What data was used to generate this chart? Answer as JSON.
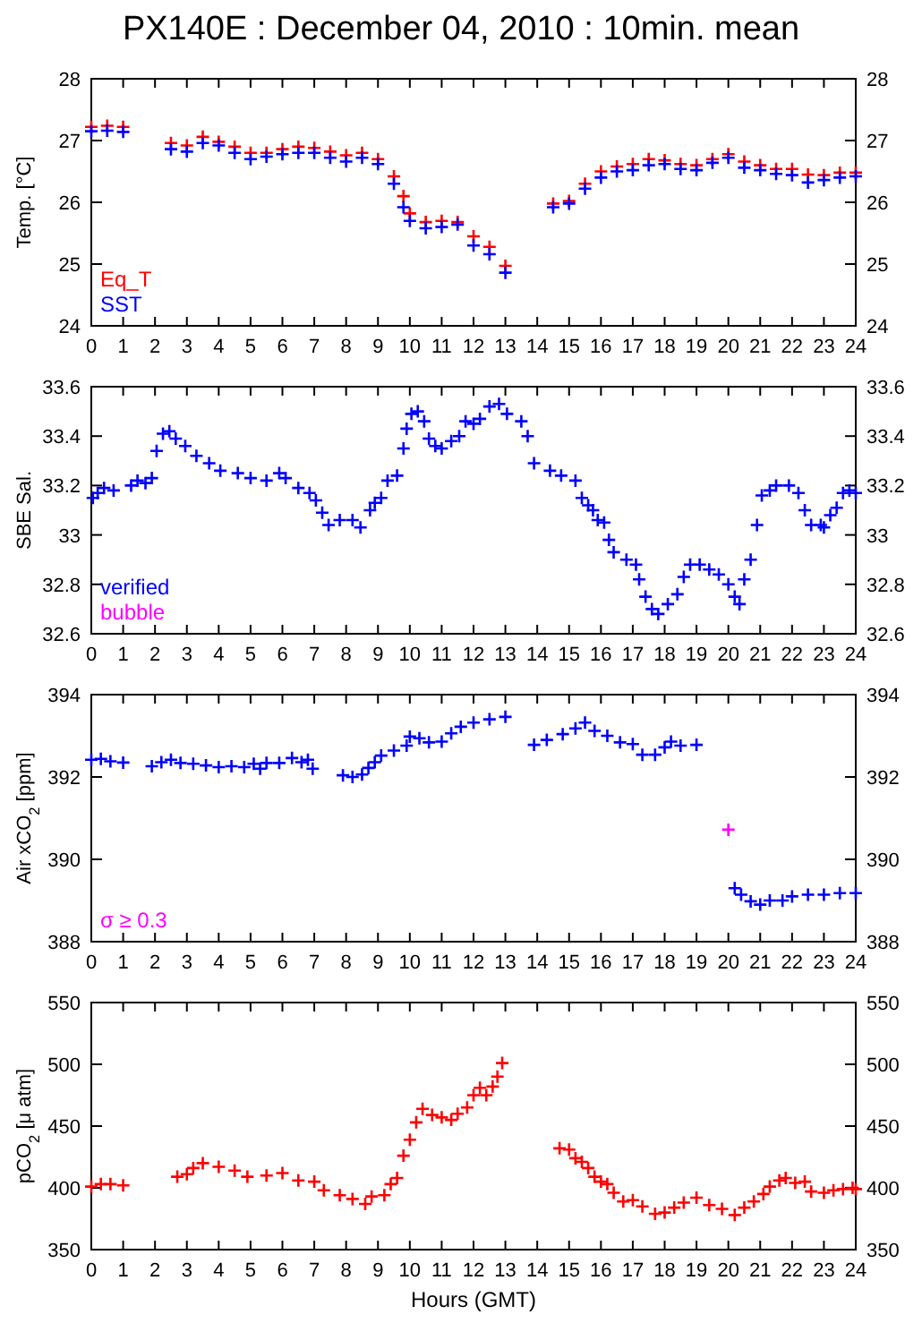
{
  "chart_data": [
    {
      "type": "scatter",
      "title": "PX140E : December 04, 2010 : 10min. mean",
      "ylabel": "Temp. [°C]",
      "marker": "cross",
      "legend": "bottom left",
      "xlim": [
        0,
        24
      ],
      "xticks": [
        0,
        1,
        2,
        3,
        4,
        5,
        6,
        7,
        8,
        9,
        10,
        11,
        12,
        13,
        14,
        15,
        16,
        17,
        18,
        19,
        20,
        21,
        22,
        23,
        24
      ],
      "ylim": [
        24,
        28
      ],
      "yticks": [
        24,
        25,
        26,
        27,
        28
      ],
      "y2lim": [
        24,
        28
      ],
      "y2ticks": [
        24,
        25,
        26,
        27,
        28
      ],
      "series": [
        {
          "name": "Eq_T",
          "color": "#ff0000",
          "x": [
            0,
            0.5,
            1,
            2.5,
            3,
            3.5,
            4,
            4.5,
            5,
            5.5,
            6,
            6.5,
            7,
            7.5,
            8,
            8.5,
            9,
            9.5,
            9.8,
            10,
            10.5,
            11,
            11.5,
            12,
            12.5,
            13,
            14.5,
            15,
            15.5,
            16,
            16.5,
            17,
            17.5,
            18,
            18.5,
            19,
            19.5,
            20,
            20.5,
            21,
            21.5,
            22,
            22.5,
            23,
            23.5,
            24
          ],
          "values": [
            27.22,
            27.24,
            27.22,
            26.96,
            26.92,
            27.06,
            26.98,
            26.9,
            26.8,
            26.8,
            26.86,
            26.9,
            26.88,
            26.82,
            26.76,
            26.8,
            26.7,
            26.42,
            26.1,
            25.82,
            25.68,
            25.7,
            25.68,
            25.45,
            25.28,
            24.97,
            25.98,
            26.02,
            26.3,
            26.5,
            26.58,
            26.62,
            26.7,
            26.68,
            26.62,
            26.6,
            26.7,
            26.78,
            26.66,
            26.6,
            26.54,
            26.54,
            26.45,
            26.44,
            26.48,
            26.48
          ]
        },
        {
          "name": "SST",
          "color": "#0000ff",
          "x": [
            0,
            0.5,
            1,
            2.5,
            3,
            3.5,
            4,
            4.5,
            5,
            5.5,
            6,
            6.5,
            7,
            7.5,
            8,
            8.5,
            9,
            9.5,
            9.8,
            10,
            10.5,
            11,
            11.5,
            12,
            12.5,
            13,
            14.5,
            15,
            15.5,
            16,
            16.5,
            17,
            17.5,
            18,
            18.5,
            19,
            19.5,
            20,
            20.5,
            21,
            21.5,
            22,
            22.5,
            23,
            23.5,
            24
          ],
          "values": [
            27.15,
            27.16,
            27.14,
            26.86,
            26.82,
            26.96,
            26.92,
            26.8,
            26.7,
            26.74,
            26.78,
            26.8,
            26.8,
            26.72,
            26.66,
            26.72,
            26.62,
            26.3,
            25.92,
            25.7,
            25.58,
            25.6,
            25.64,
            25.3,
            25.16,
            24.86,
            25.92,
            25.98,
            26.22,
            26.4,
            26.5,
            26.52,
            26.6,
            26.62,
            26.54,
            26.52,
            26.64,
            26.72,
            26.56,
            26.52,
            26.46,
            26.44,
            26.32,
            26.36,
            26.4,
            26.42
          ]
        }
      ]
    },
    {
      "type": "scatter",
      "ylabel": "SBE Sal.",
      "marker": "cross",
      "legend": "bottom left",
      "xlim": [
        0,
        24
      ],
      "xticks": [
        0,
        1,
        2,
        3,
        4,
        5,
        6,
        7,
        8,
        9,
        10,
        11,
        12,
        13,
        14,
        15,
        16,
        17,
        18,
        19,
        20,
        21,
        22,
        23,
        24
      ],
      "ylim": [
        32.6,
        33.6
      ],
      "yticks": [
        32.6,
        32.8,
        33,
        33.2,
        33.4,
        33.6
      ],
      "y2lim": [
        32.6,
        33.6
      ],
      "y2ticks": [
        32.6,
        32.8,
        33,
        33.2,
        33.4,
        33.6
      ],
      "series": [
        {
          "name": "verified",
          "color": "#0000ff",
          "x": [
            0.05,
            0.2,
            0.4,
            0.7,
            1.25,
            1.45,
            1.7,
            1.9,
            2.05,
            2.25,
            2.45,
            2.65,
            2.95,
            3.3,
            3.7,
            4.05,
            4.6,
            5.0,
            5.5,
            5.9,
            6.1,
            6.5,
            6.85,
            7.05,
            7.25,
            7.45,
            7.8,
            8.2,
            8.45,
            8.75,
            8.9,
            9.1,
            9.3,
            9.6,
            9.8,
            9.9,
            10.05,
            10.25,
            10.45,
            10.6,
            10.8,
            11.0,
            11.3,
            11.55,
            11.75,
            12.0,
            12.2,
            12.5,
            12.8,
            13.05,
            13.5,
            13.7,
            13.9,
            14.4,
            14.75,
            15.2,
            15.4,
            15.6,
            15.75,
            15.9,
            16.1,
            16.25,
            16.4,
            16.8,
            17.1,
            17.2,
            17.4,
            17.6,
            17.8,
            18.1,
            18.4,
            18.6,
            18.8,
            19.1,
            19.4,
            19.7,
            20.0,
            20.2,
            20.35,
            20.5,
            20.7,
            20.9,
            21.05,
            21.3,
            21.5,
            21.9,
            22.2,
            22.4,
            22.6,
            22.9,
            23.0,
            23.2,
            23.4,
            23.6,
            23.8,
            24.0
          ],
          "values": [
            33.15,
            33.17,
            33.19,
            33.18,
            33.2,
            33.22,
            33.21,
            33.23,
            33.34,
            33.41,
            33.42,
            33.39,
            33.36,
            33.32,
            33.29,
            33.26,
            33.25,
            33.23,
            33.22,
            33.25,
            33.23,
            33.19,
            33.17,
            33.14,
            33.09,
            33.04,
            33.06,
            33.06,
            33.03,
            33.1,
            33.13,
            33.15,
            33.22,
            33.24,
            33.35,
            33.43,
            33.49,
            33.5,
            33.46,
            33.39,
            33.36,
            33.35,
            33.38,
            33.4,
            33.46,
            33.45,
            33.47,
            33.52,
            33.53,
            33.49,
            33.46,
            33.4,
            33.29,
            33.26,
            33.24,
            33.22,
            33.15,
            33.12,
            33.1,
            33.06,
            33.05,
            32.98,
            32.93,
            32.9,
            32.88,
            32.82,
            32.75,
            32.7,
            32.68,
            32.72,
            32.76,
            32.83,
            32.88,
            32.88,
            32.86,
            32.84,
            32.8,
            32.75,
            32.72,
            32.82,
            32.9,
            33.04,
            33.16,
            33.18,
            33.2,
            33.2,
            33.17,
            33.1,
            33.04,
            33.04,
            33.03,
            33.08,
            33.11,
            33.17,
            33.18,
            33.17
          ]
        },
        {
          "name": "bubble",
          "color": "#ff00ff"
        }
      ]
    },
    {
      "type": "scatter",
      "ylabel": "Air xCO$_{2}$ [ppm]",
      "marker": "cross",
      "legend": "bottom left",
      "xlim": [
        0,
        24
      ],
      "xticks": [
        0,
        1,
        2,
        3,
        4,
        5,
        6,
        7,
        8,
        9,
        10,
        11,
        12,
        13,
        14,
        15,
        16,
        17,
        18,
        19,
        20,
        21,
        22,
        23,
        24
      ],
      "ylim": [
        388,
        394
      ],
      "yticks": [
        388,
        390,
        392,
        394
      ],
      "y2lim": [
        388,
        394
      ],
      "y2ticks": [
        388,
        390,
        392,
        394
      ],
      "series": [
        {
          "color": "#0000ff",
          "x": [
            0,
            0.3,
            0.6,
            1.0,
            1.9,
            2.2,
            2.5,
            2.8,
            3.2,
            3.6,
            4.0,
            4.4,
            4.8,
            5.1,
            5.3,
            5.5,
            5.9,
            6.3,
            6.6,
            6.8,
            6.95,
            7.9,
            8.2,
            8.5,
            8.7,
            8.9,
            9.1,
            9.5,
            9.9,
            10.0,
            10.3,
            10.6,
            11.0,
            11.3,
            11.6,
            12.0,
            12.5,
            13.0,
            13.9,
            14.3,
            14.8,
            15.2,
            15.5,
            15.8,
            16.2,
            16.6,
            17.0,
            17.3,
            17.7,
            18.0,
            18.2,
            18.5,
            19.0,
            20.2,
            20.4,
            20.7,
            21.0,
            21.3,
            21.7,
            22.0,
            22.5,
            23.0,
            23.5,
            24.0
          ],
          "values": [
            392.42,
            392.44,
            392.38,
            392.35,
            392.26,
            392.36,
            392.42,
            392.34,
            392.32,
            392.28,
            392.24,
            392.26,
            392.24,
            392.32,
            392.2,
            392.34,
            392.34,
            392.46,
            392.36,
            392.42,
            392.2,
            392.04,
            392.0,
            392.06,
            392.22,
            392.36,
            392.52,
            392.64,
            392.76,
            392.98,
            392.94,
            392.84,
            392.86,
            393.06,
            393.22,
            393.32,
            393.4,
            393.46,
            392.78,
            392.9,
            393.04,
            393.18,
            393.32,
            393.12,
            393.0,
            392.84,
            392.8,
            392.54,
            392.54,
            392.72,
            392.86,
            392.76,
            392.78,
            389.3,
            389.14,
            388.98,
            388.9,
            389.0,
            389.0,
            389.1,
            389.14,
            389.14,
            389.18,
            389.18
          ]
        },
        {
          "name": "σ ≥ 0.3",
          "color": "#ff00ff",
          "x": [
            20.0
          ],
          "values": [
            390.72
          ]
        }
      ]
    },
    {
      "type": "scatter",
      "ylabel": "pCO$_{2}$ [μ atm]",
      "xlabel": "Hours (GMT)",
      "marker": "cross",
      "xlim": [
        0,
        24
      ],
      "xticks": [
        0,
        1,
        2,
        3,
        4,
        5,
        6,
        7,
        8,
        9,
        10,
        11,
        12,
        13,
        14,
        15,
        16,
        17,
        18,
        19,
        20,
        21,
        22,
        23,
        24
      ],
      "ylim": [
        350,
        550
      ],
      "yticks": [
        350,
        400,
        450,
        500,
        550
      ],
      "y2lim": [
        350,
        550
      ],
      "y2ticks": [
        350,
        400,
        450,
        500,
        550
      ],
      "series": [
        {
          "color": "#ff0000",
          "x": [
            0,
            0.3,
            0.6,
            1.0,
            2.7,
            3.0,
            3.2,
            3.5,
            4.0,
            4.5,
            4.9,
            5.5,
            6.0,
            6.5,
            7.0,
            7.3,
            7.8,
            8.2,
            8.6,
            8.8,
            9.2,
            9.4,
            9.6,
            9.8,
            10.0,
            10.2,
            10.4,
            10.7,
            11.0,
            11.3,
            11.5,
            11.8,
            12.0,
            12.2,
            12.4,
            12.6,
            12.75,
            12.9,
            14.7,
            15.0,
            15.2,
            15.4,
            15.6,
            15.8,
            16.0,
            16.2,
            16.4,
            16.7,
            17.0,
            17.3,
            17.7,
            18.0,
            18.3,
            18.6,
            19.0,
            19.4,
            19.8,
            20.2,
            20.5,
            20.8,
            21.1,
            21.3,
            21.6,
            21.8,
            22.1,
            22.4,
            22.6,
            23.0,
            23.3,
            23.6,
            23.9,
            24.0
          ],
          "values": [
            401,
            403,
            403,
            402,
            409,
            411,
            416,
            420,
            417,
            414,
            409,
            410,
            412,
            406,
            405,
            398,
            394,
            391,
            387,
            393,
            394,
            403,
            408,
            426,
            439,
            453,
            464,
            459,
            457,
            455,
            460,
            465,
            475,
            481,
            475,
            482,
            490,
            501,
            432,
            431,
            424,
            421,
            416,
            409,
            405,
            403,
            396,
            389,
            390,
            385,
            379,
            380,
            384,
            388,
            392,
            386,
            383,
            378,
            384,
            389,
            395,
            401,
            406,
            408,
            404,
            405,
            397,
            396,
            398,
            399,
            400,
            399
          ]
        }
      ]
    }
  ]
}
